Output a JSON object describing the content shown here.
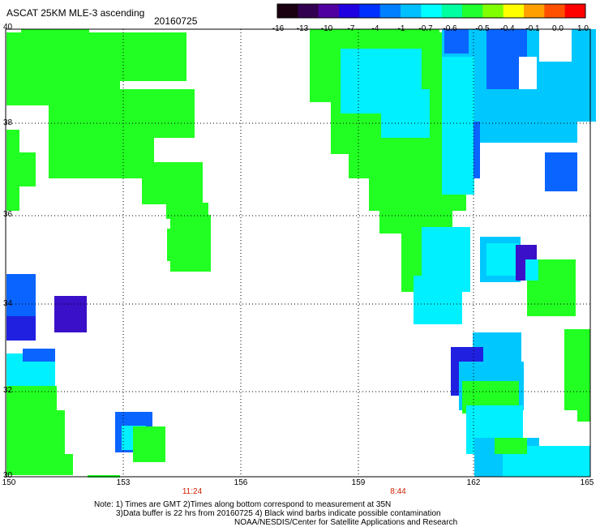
{
  "header": {
    "title": "ASCAT 25KM MLE-3 ascending",
    "date": "20160725"
  },
  "colorbar": {
    "labels": [
      "-16",
      "-13",
      "-10",
      "-7",
      "-4",
      "-1",
      "-0.7",
      "-0.6",
      "-0.5",
      "-0.4",
      "-0.1",
      "0.0",
      "1.0"
    ],
    "colors": [
      "#1a0010",
      "#320050",
      "#5000a0",
      "#2000e0",
      "#0030ff",
      "#0080ff",
      "#00c0ff",
      "#00ffff",
      "#00ffa0",
      "#20ff30",
      "#80ff00",
      "#ffff00",
      "#ffa000",
      "#ff5000",
      "#ff0000"
    ]
  },
  "axes": {
    "x_ticks": [
      "150",
      "153",
      "156",
      "159",
      "162",
      "165"
    ],
    "y_ticks": [
      "40",
      "38",
      "36",
      "34",
      "32",
      "30"
    ]
  },
  "pass_times": [
    "11:24",
    "8:44"
  ],
  "footer": {
    "line1": "Note: 1) Times are GMT 2)Times along bottom correspond to measurement at 35N",
    "line2": "3)Data buffer is 22 hrs from 20160725 4) Black wind barbs indicate possible contamination",
    "line3": "NOAA/NESDIS/Center for Satellite Applications and Research"
  },
  "palette": {
    "green": "#22ff22",
    "cyan": "#00f0ff",
    "lightblue": "#00c8ff",
    "blue": "#0a64ff",
    "darkblue": "#2020e0",
    "indigo": "#3a10c8"
  }
}
